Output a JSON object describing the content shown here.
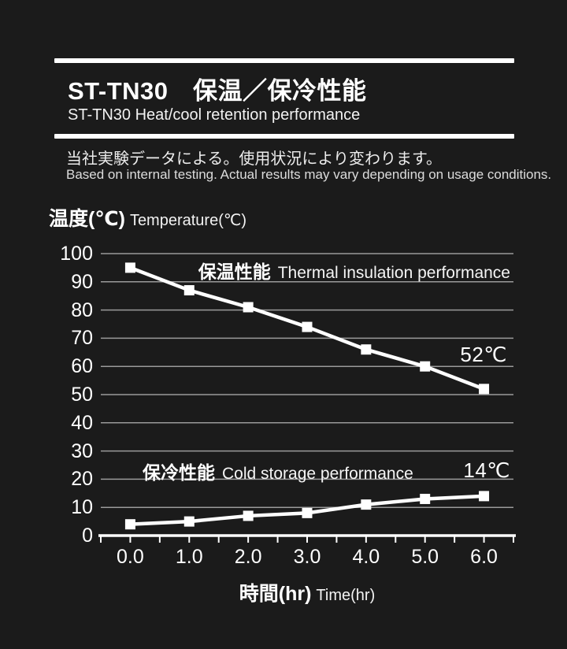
{
  "header": {
    "title": "ST-TN30　保温／保冷性能",
    "subtitle": "ST-TN30   Heat/cool retention performance"
  },
  "notes": {
    "jp": "当社実験データによる。使用状況により変わります。",
    "en": "Based on internal testing. Actual results may vary depending on usage conditions."
  },
  "chart_data": {
    "type": "line",
    "y_label_jp": "温度(℃)",
    "y_label_en": "Temperature(℃)",
    "x_label_jp": "時間(hr)",
    "x_label_en": "Time(hr)",
    "x": [
      0,
      1,
      2,
      3,
      4,
      5,
      6
    ],
    "x_tick_labels": [
      "0.0",
      "1.0",
      "2.0",
      "3.0",
      "4.0",
      "5.0",
      "6.0"
    ],
    "y_ticks": [
      0,
      10,
      20,
      30,
      40,
      50,
      60,
      70,
      80,
      90,
      100
    ],
    "ylim": [
      0,
      100
    ],
    "xlim": [
      -0.5,
      6.5
    ],
    "minor_x_tick_step": 0.5,
    "grid": "horizontal",
    "series": [
      {
        "name_jp": "保温性能",
        "name_en": "Thermal insulation performance",
        "values": [
          95,
          87,
          81,
          74,
          66,
          60,
          52
        ],
        "end_annotation": "52℃"
      },
      {
        "name_jp": "保冷性能",
        "name_en": "Cold storage performance",
        "values": [
          4,
          5,
          7,
          8,
          11,
          13,
          14
        ],
        "end_annotation": "14℃"
      }
    ],
    "colors": {
      "background": "#1b1b1b",
      "line": "#ffffff",
      "grid": "#9a9a9a",
      "axis": "#ffffff",
      "text": "#ffffff"
    }
  }
}
